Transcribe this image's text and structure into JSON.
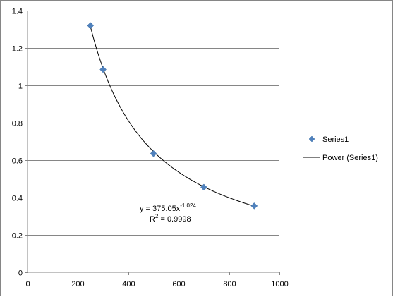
{
  "chart_data": {
    "type": "scatter",
    "title": "",
    "xlabel": "",
    "ylabel": "",
    "xlim": [
      0,
      1000
    ],
    "ylim": [
      0,
      1.4
    ],
    "xticks": [
      0,
      200,
      400,
      600,
      800,
      1000
    ],
    "yticks": [
      0,
      0.2,
      0.4,
      0.6,
      0.8,
      1,
      1.2,
      1.4
    ],
    "xtick_labels": [
      "0",
      "200",
      "400",
      "600",
      "800",
      "1000"
    ],
    "ytick_labels": [
      "0",
      "0.2",
      "0.4",
      "0.6",
      "0.8",
      "1",
      "1.2",
      "1.4"
    ],
    "grid": "horizontal",
    "legend_position": "right",
    "series": [
      {
        "name": "Series1",
        "marker": "diamond",
        "color": "#4F81BD",
        "x": [
          250,
          300,
          500,
          700,
          900
        ],
        "y": [
          1.32,
          1.085,
          0.635,
          0.455,
          0.355
        ]
      }
    ],
    "trendline": {
      "name": "Power (Series1)",
      "type": "power",
      "coefficient": 375.05,
      "exponent": -1.024,
      "x_range": [
        250,
        900
      ],
      "color": "#000000",
      "equation_prefix": "y = 375.05x",
      "equation_exponent": "-1.024",
      "r2_prefix": "R",
      "r2_superscript": "2",
      "r2_suffix": " = 0.9998"
    },
    "legend": [
      {
        "label": "Series1",
        "kind": "marker"
      },
      {
        "label": "Power (Series1)",
        "kind": "line"
      }
    ]
  }
}
